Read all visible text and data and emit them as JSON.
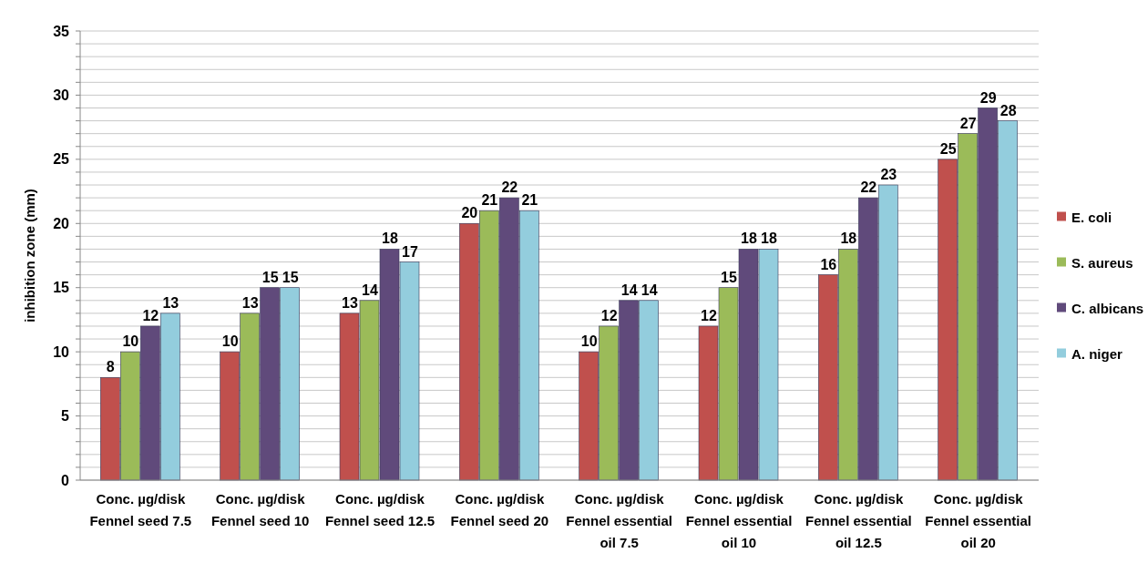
{
  "chart_data": {
    "type": "bar",
    "ylabel": "inhibition zone (mm)",
    "categories": [
      "Conc. µg/disk\nFennel seed 7.5",
      "Conc. µg/disk\nFennel seed 10",
      "Conc. µg/disk\nFennel seed 12.5",
      "Conc. µg/disk\nFennel seed 20",
      "Conc. µg/disk\nFennel essential\noil 7.5",
      "Conc. µg/disk\nFennel essential\noil 10",
      "Conc. µg/disk\nFennel essential\noil 12.5",
      "Conc. µg/disk\nFennel essential\noil 20"
    ],
    "series": [
      {
        "name": "E. coli",
        "color": "#c0504d",
        "values": [
          8,
          10,
          13,
          20,
          10,
          12,
          16,
          25
        ]
      },
      {
        "name": "S. aureus",
        "color": "#9bbb59",
        "values": [
          10,
          13,
          14,
          21,
          12,
          15,
          18,
          27
        ]
      },
      {
        "name": "C. albicans",
        "color": "#604a7b",
        "values": [
          12,
          15,
          18,
          22,
          14,
          18,
          22,
          29
        ]
      },
      {
        "name": "A. niger",
        "color": "#93cddd",
        "values": [
          13,
          15,
          17,
          21,
          14,
          18,
          23,
          28
        ]
      }
    ],
    "ylim": [
      0,
      35
    ],
    "yticks": [
      0,
      {
        "value": 1,
        "label": null
      },
      {
        "value": 2,
        "label": null
      },
      {
        "value": 3,
        "label": null
      },
      {
        "value": 4,
        "label": null
      },
      5,
      {
        "value": 6,
        "label": null
      },
      {
        "value": 7,
        "label": null
      },
      {
        "value": 8,
        "label": null
      },
      {
        "value": 9,
        "label": null
      },
      10,
      {
        "value": 11,
        "label": null
      },
      {
        "value": 12,
        "label": null
      },
      {
        "value": 13,
        "label": null
      },
      {
        "value": 14,
        "label": null
      },
      15,
      {
        "value": 16,
        "label": null
      },
      {
        "value": 17,
        "label": null
      },
      {
        "value": 18,
        "label": null
      },
      {
        "value": 19,
        "label": null
      },
      20,
      {
        "value": 21,
        "label": null
      },
      {
        "value": 22,
        "label": null
      },
      {
        "value": 23,
        "label": null
      },
      {
        "value": 24,
        "label": null
      },
      25,
      {
        "value": 26,
        "label": null
      },
      {
        "value": 27,
        "label": null
      },
      {
        "value": 28,
        "label": null
      },
      {
        "value": 29,
        "label": null
      },
      30,
      {
        "value": 31,
        "label": null
      },
      {
        "value": 32,
        "label": null
      },
      {
        "value": 33,
        "label": null
      },
      {
        "value": 34,
        "label": null
      },
      35
    ],
    "grid": "y",
    "legend": "right",
    "data_labels": true
  }
}
